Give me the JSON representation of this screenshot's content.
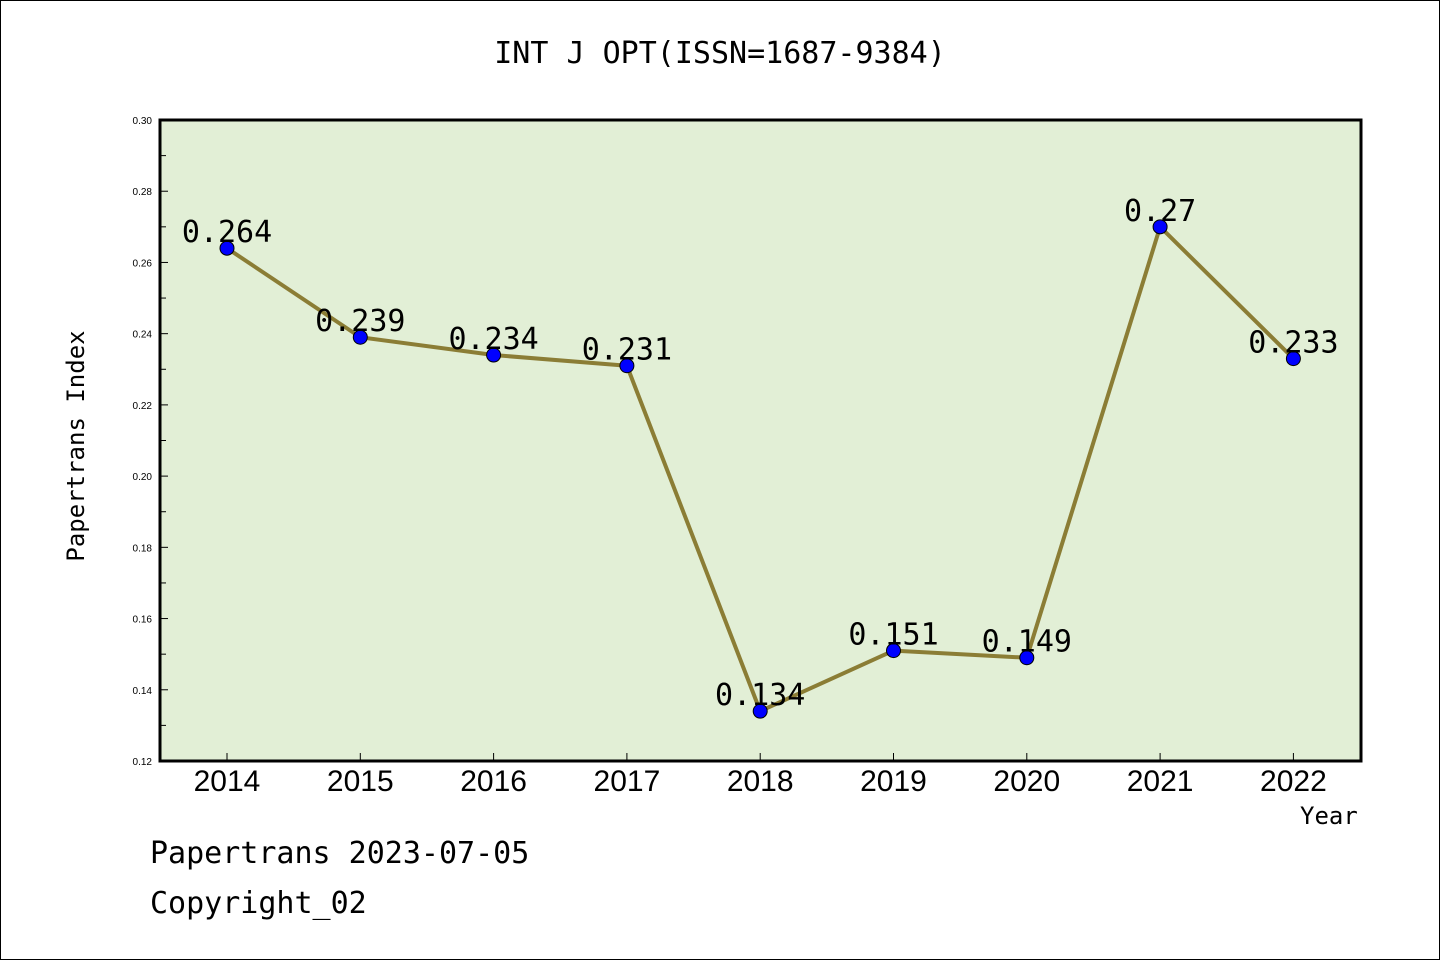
{
  "chart_data": {
    "type": "line",
    "title": "INT J OPT(ISSN=1687-9384)",
    "xlabel": "Year",
    "ylabel": "Papertrans Index",
    "categories": [
      "2014",
      "2015",
      "2016",
      "2017",
      "2018",
      "2019",
      "2020",
      "2021",
      "2022"
    ],
    "series": [
      {
        "values": [
          0.264,
          0.239,
          0.234,
          0.231,
          0.134,
          0.151,
          0.149,
          0.27,
          0.233
        ],
        "data_labels": [
          "0.264",
          "0.239",
          "0.234",
          "0.231",
          "0.134",
          "0.151",
          "0.149",
          "0.27",
          "0.233"
        ],
        "line_color": "#8b7d35",
        "marker_color": "#0000ff"
      }
    ],
    "ylim": [
      0.12,
      0.3
    ],
    "yticks": [
      "0.12",
      "0.14",
      "0.16",
      "0.18",
      "0.20",
      "0.22",
      "0.24",
      "0.26",
      "0.28",
      "0.30"
    ],
    "plot_background": "#e2efd6",
    "grid": false,
    "legend": "none"
  },
  "footer": {
    "line1": "Papertrans 2023-07-05",
    "line2": "Copyright_02"
  }
}
